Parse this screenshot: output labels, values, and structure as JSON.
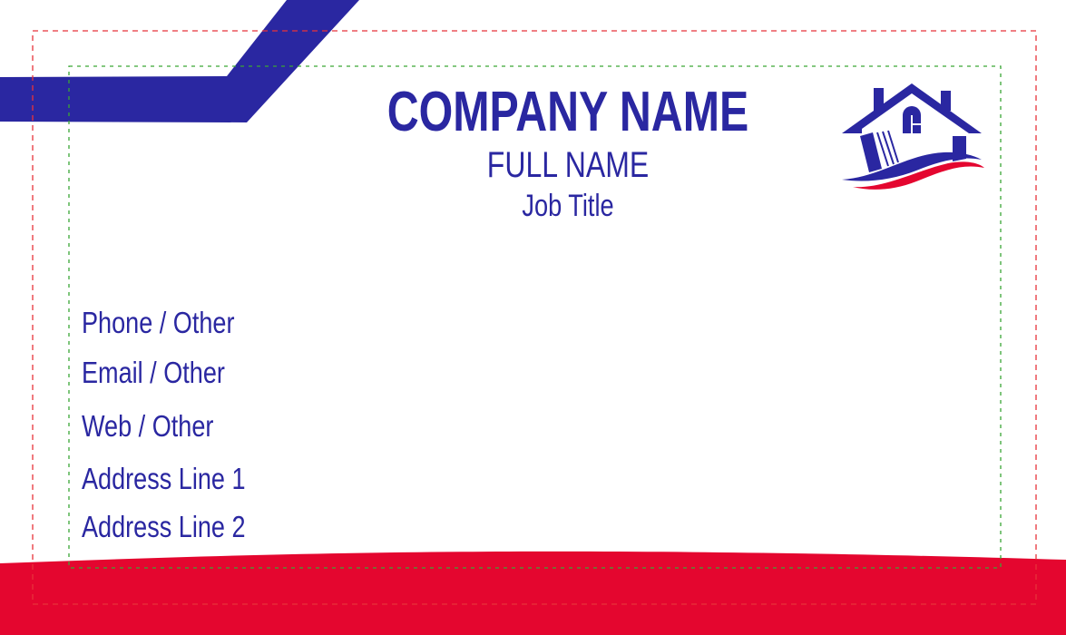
{
  "card": {
    "company_name": "COMPANY NAME",
    "full_name": "FULL NAME",
    "job_title": "Job Title",
    "contacts": [
      "Phone / Other",
      "Email / Other",
      "Web / Other",
      "Address Line 1",
      "Address Line 2"
    ]
  },
  "colors": {
    "primary": "#2a27a1",
    "accent": "#e4062f",
    "bleed_guide": "#e8333a",
    "safe_guide": "#3aa635"
  },
  "logo": {
    "icon": "house-logo-icon"
  }
}
